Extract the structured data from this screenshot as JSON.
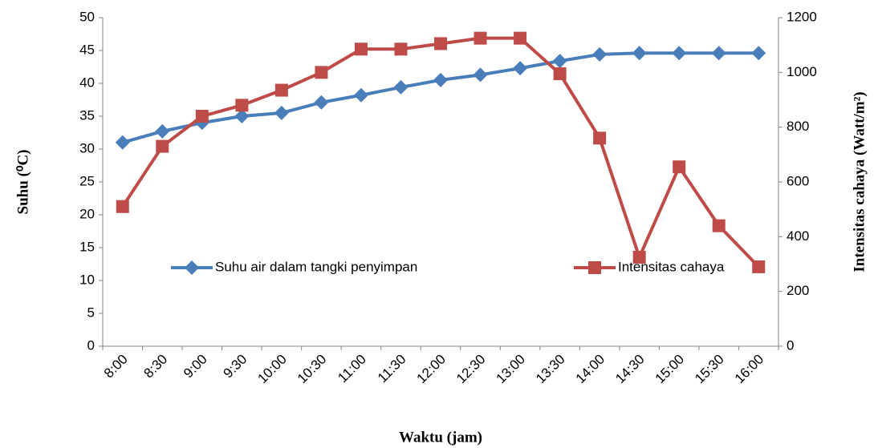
{
  "chart_data": {
    "type": "line",
    "categories": [
      "8:00",
      "8:30",
      "9:00",
      "9:30",
      "10:00",
      "10:30",
      "11:00",
      "11:30",
      "12:00",
      "12:30",
      "13:00",
      "13:30",
      "14:00",
      "14:30",
      "15:00",
      "15:30",
      "16:00"
    ],
    "series": [
      {
        "name": "Suhu air dalam tangki penyimpan",
        "color": "#4a7ebb",
        "marker": "diamond",
        "values": [
          31,
          32.7,
          34,
          35,
          35.5,
          37.1,
          38.2,
          39.4,
          40.5,
          41.3,
          42.3,
          43.4,
          44.4,
          44.6,
          44.6,
          44.6,
          44.6
        ]
      },
      {
        "name": "Intensitas cahaya",
        "color": "#be4b48",
        "marker": "square",
        "axis": "y2",
        "values": [
          510,
          730,
          840,
          880,
          935,
          1000,
          1085,
          1085,
          1105,
          1125,
          1125,
          995,
          760,
          325,
          655,
          440,
          290
        ]
      }
    ],
    "ylim": [
      0,
      50
    ],
    "yticks": [
      0,
      5,
      10,
      15,
      20,
      25,
      30,
      35,
      40,
      45,
      50
    ],
    "y2lim": [
      0,
      1200
    ],
    "y2ticks": [
      0,
      200,
      400,
      600,
      800,
      1000,
      1200
    ],
    "x_label": "Waktu (jam)",
    "y_label": "Suhu (⁰C)",
    "y2_label": "Intensitas cahaya (Watt/m²)",
    "grid": false
  }
}
